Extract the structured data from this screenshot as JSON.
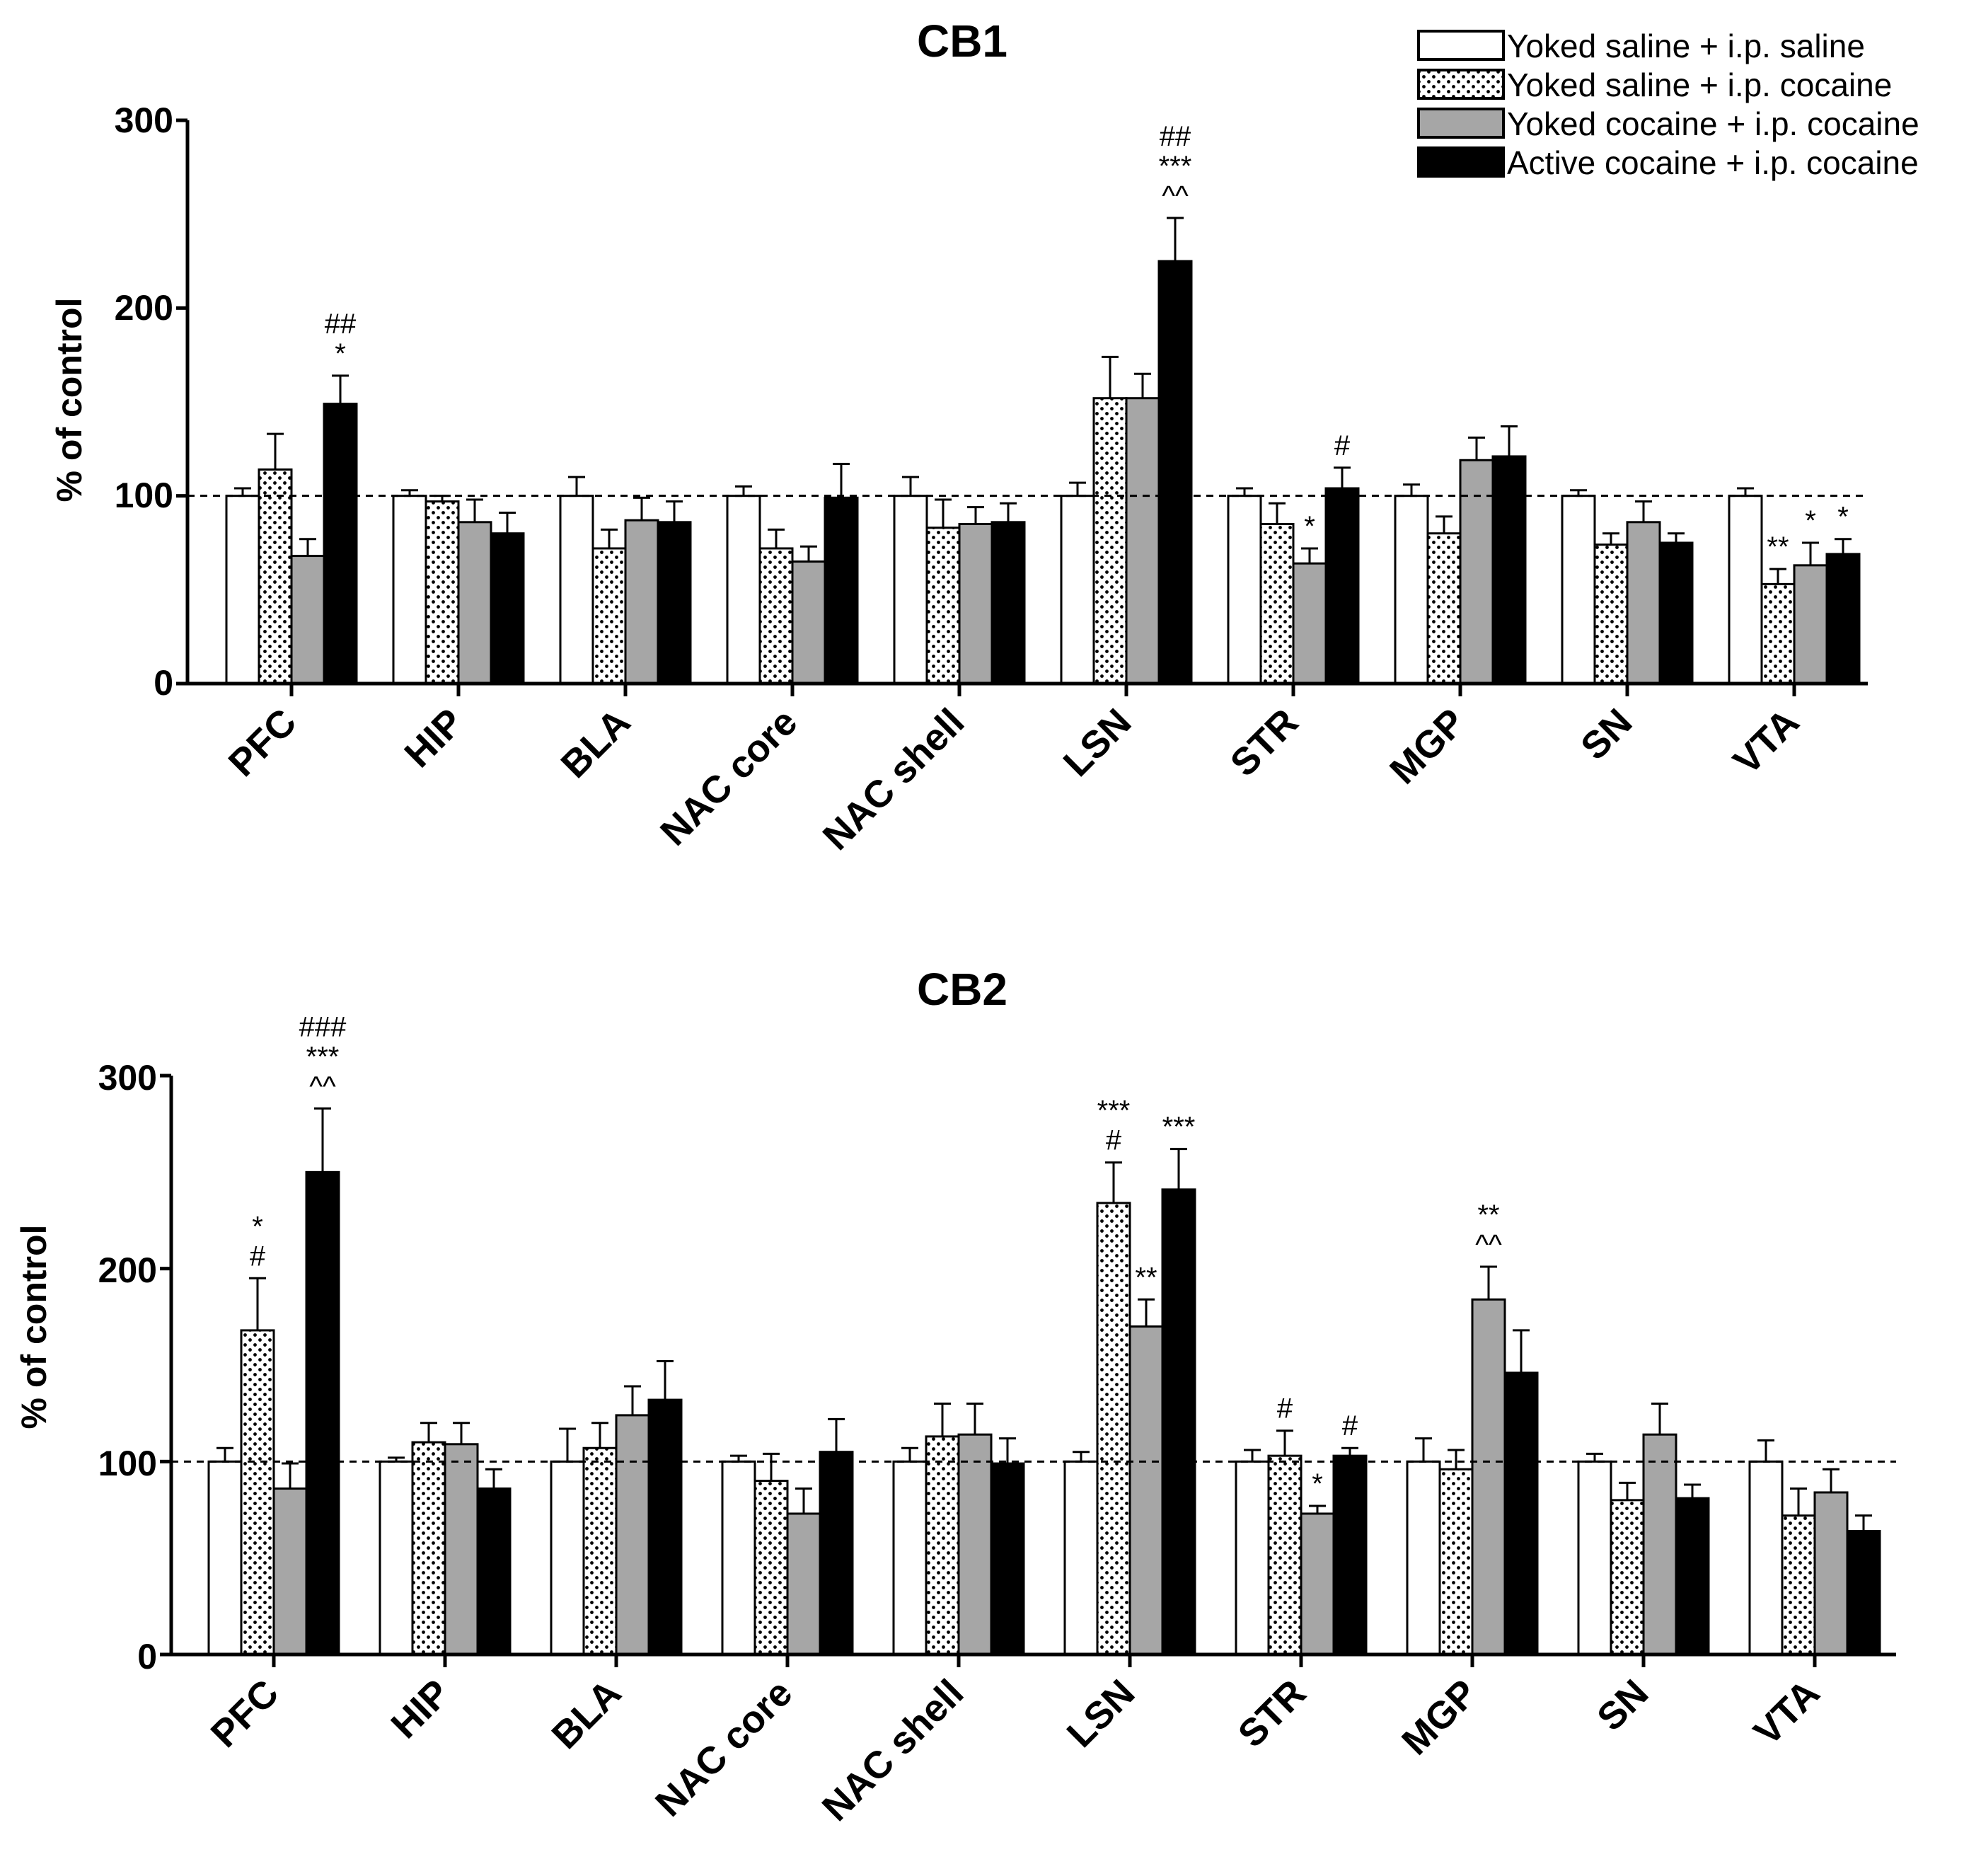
{
  "legend": {
    "items": [
      {
        "label": "Yoked saline + i.p. saline",
        "fill": "#ffffff",
        "pattern": "none"
      },
      {
        "label": "Yoked saline + i.p. cocaine",
        "fill": "#ffffff",
        "pattern": "dots"
      },
      {
        "label": "Yoked cocaine + i.p. cocaine",
        "fill": "#a6a6a6",
        "pattern": "none"
      },
      {
        "label": "Active cocaine + i.p. cocaine",
        "fill": "#000000",
        "pattern": "none"
      }
    ]
  },
  "chart_data": [
    {
      "type": "bar",
      "title": "CB1",
      "ylabel": "% of control",
      "xlabel": "",
      "ylim": [
        0,
        300
      ],
      "yticks": [
        "0",
        "100",
        "200",
        "300"
      ],
      "reference_line": 100,
      "categories": [
        "PFC",
        "HIP",
        "BLA",
        "NAC core",
        "NAC shell",
        "LSN",
        "STR",
        "MGP",
        "SN",
        "VTA"
      ],
      "series": [
        {
          "name": "Yoked saline + i.p. saline",
          "values": [
            100,
            100,
            100,
            100,
            100,
            100,
            100,
            100,
            100,
            100
          ],
          "errors": [
            4,
            3,
            10,
            5,
            10,
            7,
            4,
            6,
            3,
            4
          ]
        },
        {
          "name": "Yoked saline + i.p. cocaine",
          "values": [
            114,
            97,
            72,
            72,
            83,
            152,
            85,
            80,
            74,
            53
          ],
          "errors": [
            19,
            3,
            10,
            10,
            15,
            22,
            11,
            9,
            6,
            8
          ]
        },
        {
          "name": "Yoked cocaine + i.p. cocaine",
          "values": [
            68,
            86,
            87,
            65,
            85,
            152,
            64,
            119,
            86,
            63
          ],
          "errors": [
            9,
            12,
            12,
            8,
            9,
            13,
            8,
            12,
            11,
            12
          ]
        },
        {
          "name": "Active cocaine + i.p. cocaine",
          "values": [
            149,
            80,
            86,
            99,
            86,
            225,
            104,
            121,
            75,
            69
          ],
          "errors": [
            15,
            11,
            11,
            18,
            10,
            23,
            11,
            16,
            5,
            8
          ]
        }
      ],
      "annotations": [
        {
          "category": "PFC",
          "series": 3,
          "lines": [
            "##",
            "*"
          ]
        },
        {
          "category": "LSN",
          "series": 3,
          "lines": [
            "##",
            "***",
            "^^"
          ]
        },
        {
          "category": "STR",
          "series": 2,
          "lines": [
            "*"
          ]
        },
        {
          "category": "STR",
          "series": 3,
          "lines": [
            "#"
          ]
        },
        {
          "category": "VTA",
          "series": 1,
          "lines": [
            "**"
          ]
        },
        {
          "category": "VTA",
          "series": 2,
          "lines": [
            "*"
          ]
        },
        {
          "category": "VTA",
          "series": 3,
          "lines": [
            "*"
          ]
        }
      ]
    },
    {
      "type": "bar",
      "title": "CB2",
      "ylabel": "% of control",
      "xlabel": "",
      "ylim": [
        0,
        300
      ],
      "yticks": [
        "0",
        "100",
        "200",
        "300"
      ],
      "reference_line": 100,
      "categories": [
        "PFC",
        "HIP",
        "BLA",
        "NAC core",
        "NAC shell",
        "LSN",
        "STR",
        "MGP",
        "SN",
        "VTA"
      ],
      "series": [
        {
          "name": "Yoked saline + i.p. saline",
          "values": [
            100,
            100,
            100,
            100,
            100,
            100,
            100,
            100,
            100,
            100
          ],
          "errors": [
            7,
            2,
            17,
            3,
            7,
            5,
            6,
            12,
            4,
            11
          ]
        },
        {
          "name": "Yoked saline + i.p. cocaine",
          "values": [
            168,
            110,
            107,
            90,
            113,
            234,
            103,
            96,
            80,
            72
          ],
          "errors": [
            27,
            10,
            13,
            14,
            17,
            21,
            13,
            10,
            9,
            14
          ]
        },
        {
          "name": "Yoked cocaine + i.p. cocaine",
          "values": [
            86,
            109,
            124,
            73,
            114,
            170,
            73,
            184,
            114,
            84
          ],
          "errors": [
            13,
            11,
            15,
            13,
            16,
            14,
            4,
            17,
            16,
            12
          ]
        },
        {
          "name": "Active cocaine + i.p. cocaine",
          "values": [
            250,
            86,
            132,
            105,
            99,
            241,
            103,
            146,
            81,
            64
          ],
          "errors": [
            33,
            10,
            20,
            17,
            13,
            21,
            4,
            22,
            7,
            8
          ]
        }
      ],
      "annotations": [
        {
          "category": "PFC",
          "series": 1,
          "lines": [
            "*",
            "#"
          ]
        },
        {
          "category": "PFC",
          "series": 3,
          "lines": [
            "###",
            "***",
            "^^"
          ]
        },
        {
          "category": "LSN",
          "series": 1,
          "lines": [
            "***",
            "#"
          ]
        },
        {
          "category": "LSN",
          "series": 2,
          "lines": [
            "**"
          ]
        },
        {
          "category": "LSN",
          "series": 3,
          "lines": [
            "***"
          ]
        },
        {
          "category": "STR",
          "series": 1,
          "lines": [
            "#"
          ]
        },
        {
          "category": "STR",
          "series": 2,
          "lines": [
            "*"
          ]
        },
        {
          "category": "STR",
          "series": 3,
          "lines": [
            "#"
          ]
        },
        {
          "category": "MGP",
          "series": 2,
          "lines": [
            "**",
            "^^"
          ]
        }
      ]
    }
  ]
}
